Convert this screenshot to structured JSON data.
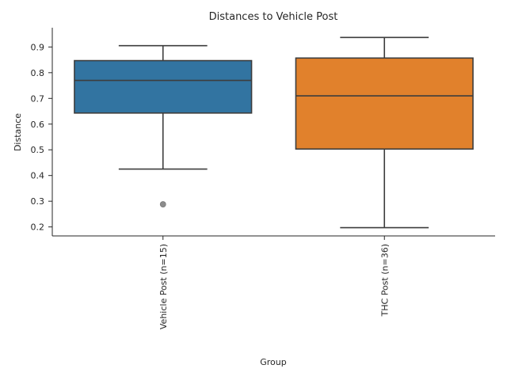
{
  "chart_data": {
    "type": "box",
    "title": "Distances to Vehicle Post",
    "xlabel": "Group",
    "ylabel": "Distance",
    "ylim": [
      0.165,
      0.975
    ],
    "yticks": [
      0.2,
      0.3,
      0.4,
      0.5,
      0.6,
      0.7,
      0.8,
      0.9
    ],
    "ytick_labels": [
      "0.2",
      "0.3",
      "0.4",
      "0.5",
      "0.6",
      "0.7",
      "0.8",
      "0.9"
    ],
    "grid": false,
    "categories": [
      "Vehicle Post (n=15)",
      "THC Post (n=36)"
    ],
    "boxes": [
      {
        "category": "Vehicle Post (n=15)",
        "whisker_low": 0.425,
        "q1": 0.643,
        "median": 0.77,
        "q3": 0.847,
        "whisker_high": 0.905,
        "outliers": [
          0.288
        ],
        "color": "#3274a1"
      },
      {
        "category": "THC Post (n=36)",
        "whisker_low": 0.197,
        "q1": 0.503,
        "median": 0.71,
        "q3": 0.857,
        "whisker_high": 0.937,
        "outliers": [],
        "color": "#e1812c"
      }
    ]
  }
}
